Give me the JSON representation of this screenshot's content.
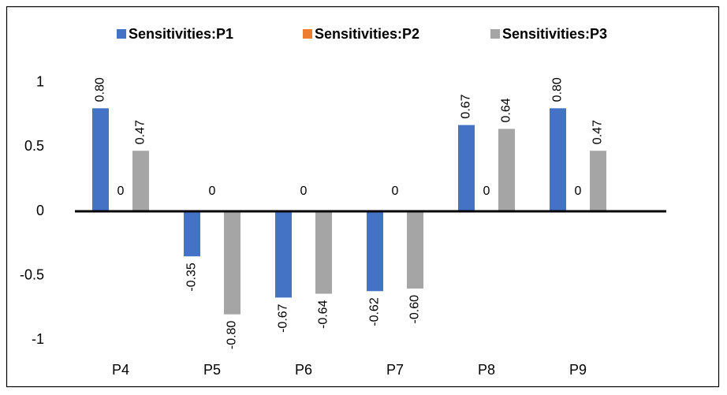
{
  "chart_data": {
    "type": "bar",
    "categories": [
      "P4",
      "P5",
      "P6",
      "P7",
      "P8",
      "P9"
    ],
    "series": [
      {
        "name": "Sensitivities:P1",
        "color": "#4472c4",
        "values": [
          0.8,
          -0.35,
          -0.67,
          -0.62,
          0.67,
          0.8
        ],
        "value_labels": [
          "0.80",
          "-0.35",
          "-0.67",
          "-0.62",
          "0.67",
          "0.80"
        ]
      },
      {
        "name": "Sensitivities:P2",
        "color": "#ed7d31",
        "values": [
          0,
          0,
          0,
          0,
          0,
          0
        ]
      },
      {
        "name": "Sensitivities:P3",
        "color": "#a5a5a5",
        "values": [
          0.47,
          -0.8,
          -0.64,
          -0.6,
          0.64,
          0.47
        ],
        "value_labels": [
          "0.47",
          "-0.80",
          "-0.64",
          "-0.60",
          "0.64",
          "0.47"
        ]
      }
    ],
    "ylim": [
      -1.2,
      1.2
    ],
    "yticks": [
      -1,
      -0.5,
      0,
      0.5,
      1
    ],
    "grid": false,
    "legend": "top"
  }
}
